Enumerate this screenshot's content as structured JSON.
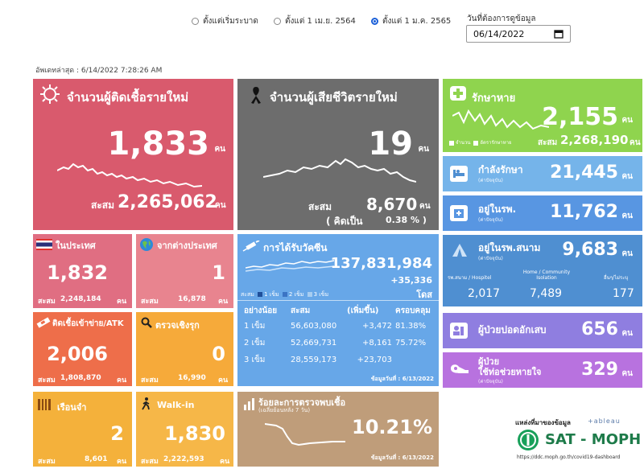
{
  "filters": {
    "options": [
      "ตั้งแต่เริ่มระบาด",
      "ตั้งแต่ 1 เม.ย. 2564",
      "ตั้งแต่ 1 ม.ค. 2565"
    ],
    "selected_index": 2,
    "date_label": "วันที่ต้องการดูข้อมูล",
    "date_value": "06/14/2022"
  },
  "updated": "อัพเดทล่าสุด : 6/14/2022 7:28:26 AM",
  "new_cases": {
    "title": "จำนวนผู้ติดเชื้อรายใหม่",
    "value": "1,833",
    "unit": "คน",
    "cum_label": "สะสม",
    "cum_value": "2,265,062",
    "cum_unit": "คน",
    "color": "#d95a6d"
  },
  "new_deaths": {
    "title": "จำนวนผู้เสียชีวิตรายใหม่",
    "value": "19",
    "unit": "คน",
    "cum_label": "สะสม",
    "cum_value": "8,670",
    "cum_unit": "คน",
    "pct_open": "( คิดเป็น",
    "pct_value": "0.38 % )",
    "color": "#6d6d6d"
  },
  "recovered": {
    "title": "รักษาหาย",
    "value": "2,155",
    "unit": "คน",
    "legend_count": "จำนวน",
    "legend_rate": "อัตรารักษาหาย",
    "cum_label": "สะสม",
    "cum_value": "2,268,190",
    "cum_unit": "คน",
    "color": "#8fd44e"
  },
  "treating": {
    "title": "กำลังรักษา",
    "sub": "(ค่าปัจจุบัน)",
    "value": "21,445",
    "unit": "คน"
  },
  "in_hospital": {
    "title": "อยู่ในรพ.",
    "sub": "(ค่าปัจจุบัน)",
    "value": "11,762",
    "unit": "คน"
  },
  "in_field": {
    "title": "อยู่ในรพ.สนาม",
    "sub": "(ค่าปัจจุบัน)",
    "value": "9,683",
    "unit": "คน",
    "cols": [
      {
        "label": "รพ.สนาม / Hospitel",
        "value": "2,017"
      },
      {
        "label": "Home / Community Isolation",
        "value": "7,489"
      },
      {
        "label": "อื่นๆ/ไม่ระบุ",
        "value": "177"
      }
    ]
  },
  "pneumonia": {
    "title": "ผู้ป่วยปอดอักเสบ",
    "value": "656",
    "unit": "คน"
  },
  "ventilator": {
    "title_1": "ผู้ป่วย",
    "title_2": "ใช้ท่อช่วยหายใจ",
    "sub": "(ค่าปัจจุบัน)",
    "value": "329",
    "unit": "คน"
  },
  "domestic": {
    "title": "ในประเทศ",
    "value": "1,832",
    "cum_label": "สะสม",
    "cum_value": "2,248,184",
    "cum_unit": "คน"
  },
  "abroad": {
    "title": "จากต่างประเทศ",
    "value": "1",
    "cum_label": "สะสม",
    "cum_value": "16,878",
    "cum_unit": "คน"
  },
  "atk": {
    "title": "ติดเชื้อเข้าข่าย/ATK",
    "value": "2,006",
    "cum_label": "สะสม",
    "cum_value": "1,808,870",
    "cum_unit": "คน"
  },
  "active_search": {
    "title": "ตรวจเชิงรุก",
    "value": "0",
    "cum_label": "สะสม",
    "cum_value": "16,990",
    "cum_unit": "คน"
  },
  "prison": {
    "title": "เรือนจำ",
    "value": "2",
    "cum_label": "สะสม",
    "cum_value": "8,601",
    "cum_unit": "คน"
  },
  "walkin": {
    "title": "Walk-in",
    "value": "1,830",
    "cum_label": "สะสม",
    "cum_value": "2,222,593",
    "cum_unit": "คน"
  },
  "vaccine": {
    "title": "การได้รับวัคซีน",
    "total": "137,831,984",
    "delta": "+35,336",
    "dose_unit": "โดส",
    "legend_label": "สะสม",
    "legend_items": [
      "1 เข็ม",
      "2 เข็ม",
      "3 เข็ม"
    ],
    "headers": [
      "อย่างน้อย",
      "สะสม",
      "(เพิ่มขึ้น)",
      "ครอบคลุม"
    ],
    "rows": [
      {
        "dose": "1 เข็ม",
        "cum": "56,603,080",
        "inc": "+3,472",
        "cover": "81.38%"
      },
      {
        "dose": "2 เข็ม",
        "cum": "52,669,731",
        "inc": "+8,161",
        "cover": "75.72%"
      },
      {
        "dose": "3 เข็ม",
        "cum": "28,559,173",
        "inc": "+23,703",
        "cover": ""
      }
    ],
    "date": "ข้อมูลวันที่ : 6/13/2022"
  },
  "positivity": {
    "title": "ร้อยละการตรวจพบเชื้อ",
    "sub": "(เฉลี่ยย้อนหลัง 7 วัน)",
    "value": "10.21%",
    "date": "ข้อมูลวันที่ : 6/13/2022"
  },
  "source": {
    "label": "แหล่งที่มาของข้อมูล",
    "tableau": "+ableau",
    "brand": "SAT - MOPH",
    "url": "https://ddc.moph.go.th/covid19-dashboard"
  }
}
